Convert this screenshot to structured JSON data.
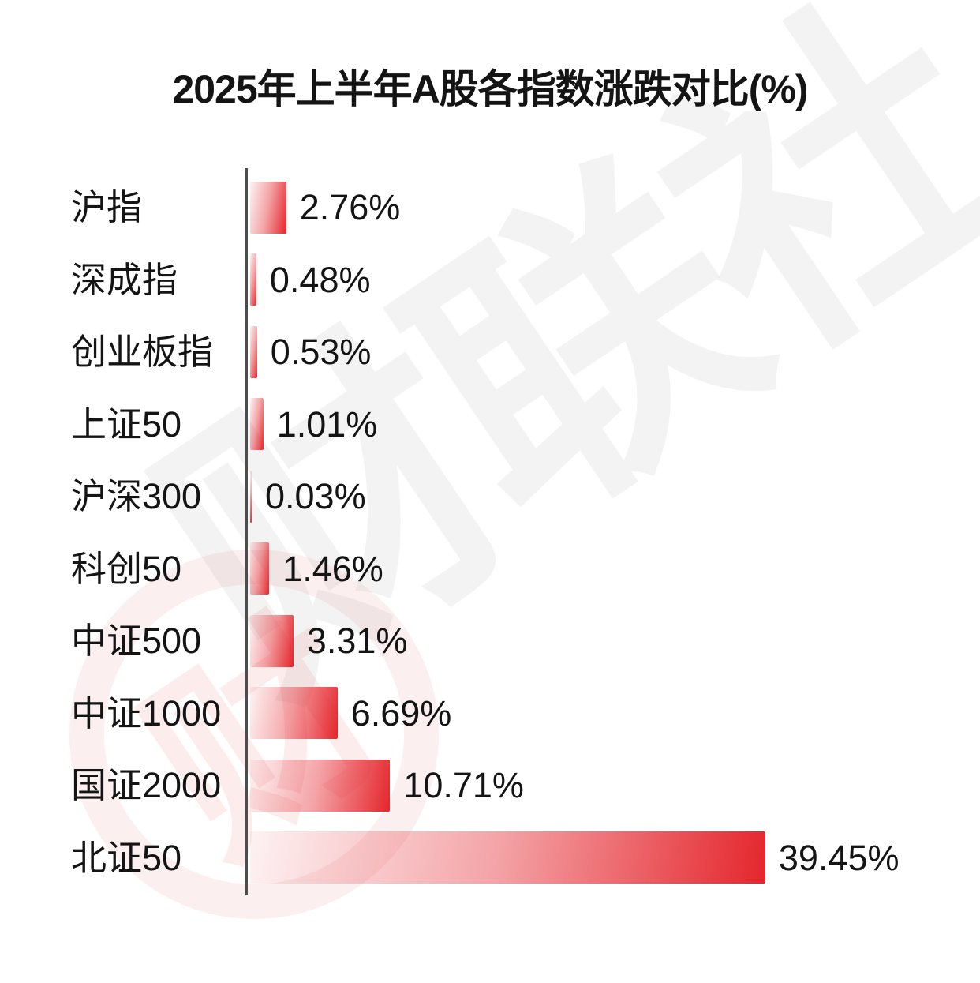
{
  "title": "2025年上半年A股各指数涨跌对比(%)",
  "watermark": {
    "text": "财联社",
    "logo_char": "财"
  },
  "colors": {
    "bar_red": "#e4262c",
    "bar_light": "#fbe9ea",
    "axis": "#4d4d4d",
    "text": "#141414",
    "watermark_gray": "rgba(70,70,70,0.065)",
    "watermark_pink": "rgba(224,64,70,0.09)"
  },
  "chart_data": {
    "type": "bar",
    "orientation": "horizontal",
    "title": "2025年上半年A股各指数涨跌对比(%)",
    "categories": [
      "沪指",
      "深成指",
      "创业板指",
      "上证50",
      "沪深300",
      "科创50",
      "中证500",
      "中证1000",
      "国证2000",
      "北证50"
    ],
    "values": [
      2.76,
      0.48,
      0.53,
      1.01,
      0.03,
      1.46,
      3.31,
      6.69,
      10.71,
      39.45
    ],
    "value_labels": [
      "2.76%",
      "0.48%",
      "0.53%",
      "1.01%",
      "0.03%",
      "1.46%",
      "3.31%",
      "6.69%",
      "10.71%",
      "39.45%"
    ],
    "unit": "%",
    "xlabel": "",
    "ylabel": "",
    "xlim": [
      0,
      40
    ],
    "grid": false,
    "legend": false,
    "bar_gradient": [
      "#fbe9ea",
      "#e4262c"
    ],
    "baseline": "left-vertical"
  }
}
